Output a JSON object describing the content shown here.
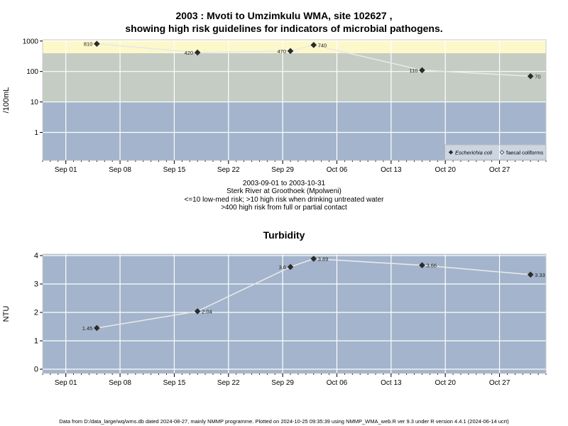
{
  "header": {
    "title_line1": "2003 : Mvoti to Umzimkulu WMA, site 102627 ,",
    "title_line2": "showing high risk guidelines for indicators of microbial pathogens."
  },
  "subtitle": {
    "dates": "2003-09-01 to 2003-10-31",
    "site": "Sterk River at Groothoek (Mpolweni)",
    "guideline1": "<=10 low-med risk; >10 high risk when drinking untreated water",
    "guideline2": ">400 high risk from full or partial contact"
  },
  "footer": {
    "text": "Data from D:/data_large/wq/wms.db dated 2024-08-27, mainly NMMP programme. Plotted on 2024-10-25 09:35:39 using NMMP_WMA_web.R ver 9.3 under R version 4.4.1 (2024-06-14 ucrt)"
  },
  "chart_data": [
    {
      "type": "line",
      "title": "",
      "ylabel": "/100mL",
      "yscale": "log",
      "ylim": [
        0.12,
        1100
      ],
      "yticks": [
        1,
        10,
        100,
        1000
      ],
      "ytick_labels": [
        "1",
        "10",
        "100",
        "1000"
      ],
      "xlim": [
        "2003-08-29",
        "2003-11-02"
      ],
      "xticks": [
        "2003-09-01",
        "2003-09-08",
        "2003-09-15",
        "2003-09-22",
        "2003-09-29",
        "2003-10-06",
        "2003-10-13",
        "2003-10-20",
        "2003-10-27"
      ],
      "xtick_labels": [
        "Sep 01",
        "Sep 08",
        "Sep 15",
        "Sep 22",
        "Sep 29",
        "Oct 06",
        "Oct 13",
        "Oct 20",
        "Oct 27"
      ],
      "grid": true,
      "bands": [
        {
          "from": 0.12,
          "to": 10,
          "color": "#a3b4cc"
        },
        {
          "from": 10,
          "to": 400,
          "color": "#c5ccc3"
        },
        {
          "from": 400,
          "to": 1100,
          "color": "#fdf8c9"
        }
      ],
      "line_color": "#e8e8e8",
      "series": [
        {
          "name": "Escherichia coli",
          "marker": "diamond-filled",
          "x": [
            "2003-09-05",
            "2003-09-18",
            "2003-09-30",
            "2003-10-03",
            "2003-10-17",
            "2003-10-31"
          ],
          "y": [
            810,
            420,
            470,
            740,
            110,
            70
          ],
          "labels": [
            "810",
            "420",
            "470",
            "740",
            "110",
            "70"
          ],
          "label_side": [
            "left",
            "left",
            "left",
            "right",
            "left",
            "right"
          ]
        },
        {
          "name": "faecal coliforms",
          "marker": "diamond-open",
          "x": [],
          "y": []
        }
      ],
      "legend": "bottom-right"
    },
    {
      "type": "line",
      "title": "Turbidity",
      "ylabel": "NTU",
      "ylim": [
        -0.15,
        4.05
      ],
      "yticks": [
        0,
        1,
        2,
        3,
        4
      ],
      "ytick_labels": [
        "0",
        "1",
        "2",
        "3",
        "4"
      ],
      "xlim": [
        "2003-08-29",
        "2003-11-02"
      ],
      "xticks": [
        "2003-09-01",
        "2003-09-08",
        "2003-09-15",
        "2003-09-22",
        "2003-09-29",
        "2003-10-06",
        "2003-10-13",
        "2003-10-20",
        "2003-10-27"
      ],
      "xtick_labels": [
        "Sep 01",
        "Sep 08",
        "Sep 15",
        "Sep 22",
        "Sep 29",
        "Oct 06",
        "Oct 13",
        "Oct 20",
        "Oct 27"
      ],
      "grid": true,
      "bg_color": "#a3b4cc",
      "line_color": "#e8e8e8",
      "series": [
        {
          "x": [
            "2003-09-05",
            "2003-09-18",
            "2003-09-30",
            "2003-10-03",
            "2003-10-17",
            "2003-10-31"
          ],
          "y": [
            1.45,
            2.04,
            3.6,
            3.89,
            3.66,
            3.33
          ],
          "labels": [
            "1.45",
            "2.04",
            "3.6",
            "3.89",
            "3.66",
            "3.33"
          ],
          "label_side": [
            "left",
            "right",
            "left",
            "right",
            "right",
            "right"
          ]
        }
      ]
    }
  ]
}
